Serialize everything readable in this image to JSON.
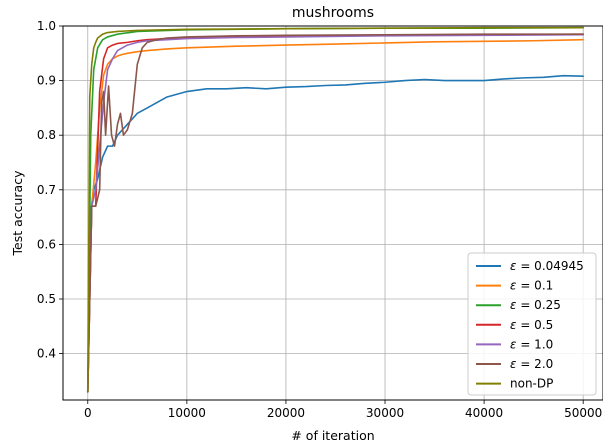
{
  "chart_data": {
    "type": "line",
    "title": "mushrooms",
    "xlabel": "# of iteration",
    "ylabel": "Test accuracy",
    "xlim": [
      -2500,
      52000
    ],
    "ylim": [
      0.315,
      1.0
    ],
    "xticks": [
      0,
      10000,
      20000,
      30000,
      40000,
      50000
    ],
    "yticks": [
      0.4,
      0.5,
      0.6,
      0.7,
      0.8,
      0.9,
      1.0
    ],
    "xtick_labels": [
      "0",
      "10000",
      "20000",
      "30000",
      "40000",
      "50000"
    ],
    "ytick_labels": [
      "0.4",
      "0.5",
      "0.6",
      "0.7",
      "0.8",
      "0.9",
      "1.0"
    ],
    "grid": true,
    "legend_position": "lower-right",
    "series": [
      {
        "name": "ε = 0.04945",
        "eps_value": "0.04945",
        "color": "#1f77b4",
        "x": [
          0,
          300,
          600,
          1000,
          1500,
          2000,
          2500,
          3000,
          3500,
          4000,
          5000,
          6000,
          7000,
          8000,
          9000,
          10000,
          12000,
          14000,
          16000,
          18000,
          20000,
          22000,
          24000,
          26000,
          28000,
          30000,
          32000,
          34000,
          36000,
          38000,
          40000,
          42000,
          44000,
          46000,
          48000,
          50000
        ],
        "y": [
          0.33,
          0.66,
          0.7,
          0.72,
          0.76,
          0.78,
          0.78,
          0.8,
          0.81,
          0.82,
          0.84,
          0.85,
          0.86,
          0.87,
          0.875,
          0.88,
          0.885,
          0.885,
          0.887,
          0.885,
          0.888,
          0.889,
          0.891,
          0.892,
          0.895,
          0.897,
          0.9,
          0.902,
          0.9,
          0.9,
          0.9,
          0.903,
          0.905,
          0.906,
          0.909,
          0.908
        ]
      },
      {
        "name": "ε = 0.1",
        "eps_value": "0.1",
        "color": "#ff7f0e",
        "x": [
          0,
          400,
          800,
          1200,
          1600,
          2000,
          2500,
          3000,
          3500,
          4000,
          5000,
          6000,
          8000,
          10000,
          15000,
          20000,
          25000,
          30000,
          35000,
          40000,
          45000,
          50000
        ],
        "y": [
          0.33,
          0.67,
          0.75,
          0.85,
          0.91,
          0.93,
          0.94,
          0.945,
          0.948,
          0.95,
          0.953,
          0.955,
          0.958,
          0.96,
          0.963,
          0.965,
          0.967,
          0.969,
          0.971,
          0.972,
          0.973,
          0.975
        ]
      },
      {
        "name": "ε = 0.25",
        "eps_value": "0.25",
        "color": "#2ca02c",
        "x": [
          0,
          300,
          600,
          1000,
          1500,
          2000,
          3000,
          5000,
          10000,
          20000,
          30000,
          40000,
          50000
        ],
        "y": [
          0.33,
          0.8,
          0.92,
          0.96,
          0.975,
          0.98,
          0.985,
          0.99,
          0.993,
          0.995,
          0.996,
          0.996,
          0.997
        ]
      },
      {
        "name": "ε = 0.5",
        "eps_value": "0.5",
        "color": "#d62728",
        "x": [
          0,
          400,
          800,
          1200,
          1600,
          2000,
          2500,
          3000,
          4000,
          5000,
          6000,
          8000,
          10000,
          15000,
          20000,
          30000,
          40000,
          50000
        ],
        "y": [
          0.33,
          0.67,
          0.67,
          0.88,
          0.94,
          0.96,
          0.965,
          0.968,
          0.97,
          0.973,
          0.975,
          0.977,
          0.978,
          0.98,
          0.982,
          0.983,
          0.984,
          0.985
        ]
      },
      {
        "name": "ε = 1.0",
        "eps_value": "1.0",
        "color": "#9467bd",
        "x": [
          0,
          400,
          800,
          1200,
          1600,
          2000,
          2500,
          3000,
          4000,
          5000,
          6000,
          8000,
          10000,
          15000,
          20000,
          30000,
          40000,
          50000
        ],
        "y": [
          0.33,
          0.67,
          0.7,
          0.78,
          0.86,
          0.92,
          0.94,
          0.955,
          0.965,
          0.97,
          0.973,
          0.975,
          0.977,
          0.979,
          0.98,
          0.982,
          0.983,
          0.984
        ]
      },
      {
        "name": "ε = 2.0",
        "eps_value": "2.0",
        "color": "#8c564b",
        "x": [
          0,
          400,
          800,
          1200,
          1400,
          1600,
          1800,
          2100,
          2400,
          2700,
          3000,
          3300,
          3600,
          4000,
          4500,
          5000,
          5500,
          6000,
          7000,
          8000,
          10000,
          15000,
          20000,
          30000,
          40000,
          50000
        ],
        "y": [
          0.33,
          0.67,
          0.67,
          0.7,
          0.86,
          0.88,
          0.8,
          0.89,
          0.8,
          0.78,
          0.82,
          0.84,
          0.8,
          0.81,
          0.84,
          0.93,
          0.96,
          0.97,
          0.975,
          0.978,
          0.98,
          0.982,
          0.983,
          0.984,
          0.985,
          0.985
        ]
      },
      {
        "name": "non-DP",
        "eps_value": "",
        "color": "#808000",
        "x": [
          0,
          200,
          400,
          600,
          800,
          1000,
          1500,
          2000,
          3000,
          5000,
          10000,
          20000,
          30000,
          40000,
          50000
        ],
        "y": [
          0.33,
          0.87,
          0.93,
          0.96,
          0.97,
          0.978,
          0.985,
          0.988,
          0.99,
          0.992,
          0.994,
          0.995,
          0.996,
          0.997,
          0.997
        ]
      }
    ]
  }
}
